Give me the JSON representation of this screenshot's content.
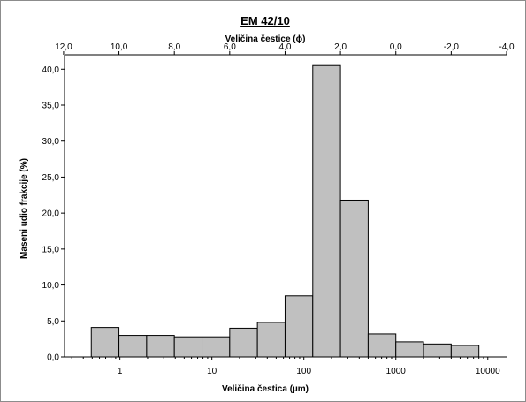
{
  "chart_data": {
    "type": "bar",
    "title": "EM 42/10",
    "xlabel": "Veličina čestica (µm)",
    "x2label": "Veličina čestice (ϕ)",
    "ylabel": "Maseni udio frakcije (%)",
    "xscale": "log",
    "xlim": [
      0.25,
      16000
    ],
    "ylim": [
      0,
      42
    ],
    "xticks": [
      1,
      10,
      100,
      1000,
      10000
    ],
    "xtick_labels": [
      "1",
      "10",
      "100",
      "1000",
      "10000"
    ],
    "x2ticks": [
      12,
      10,
      8,
      6,
      4,
      2,
      0,
      -2,
      -4
    ],
    "x2tick_labels": [
      "12,0",
      "10,0",
      "8,0",
      "6,0",
      "4,0",
      "2,0",
      "0,0",
      "-2,0",
      "-4,0"
    ],
    "yticks": [
      0,
      5,
      10,
      15,
      20,
      25,
      30,
      35,
      40
    ],
    "ytick_labels": [
      "0,0",
      "5,0",
      "10,0",
      "15,0",
      "20,0",
      "25,0",
      "30,0",
      "35,0",
      "40,0"
    ],
    "bins_phi": [
      [
        11,
        10
      ],
      [
        10,
        9
      ],
      [
        9,
        8
      ],
      [
        8,
        7
      ],
      [
        7,
        6
      ],
      [
        6,
        5
      ],
      [
        5,
        4
      ],
      [
        4,
        3
      ],
      [
        3,
        2
      ],
      [
        2,
        1
      ],
      [
        1,
        0
      ],
      [
        0,
        -1
      ],
      [
        -1,
        -2
      ],
      [
        -2,
        -3
      ]
    ],
    "values": [
      4.1,
      3.0,
      3.0,
      2.8,
      2.8,
      4.0,
      4.8,
      8.5,
      40.5,
      21.8,
      3.2,
      2.1,
      1.8,
      1.6
    ],
    "bar_color": "#c0c0c0",
    "bar_edge_color": "#000000",
    "grid": false,
    "legend": "none"
  }
}
